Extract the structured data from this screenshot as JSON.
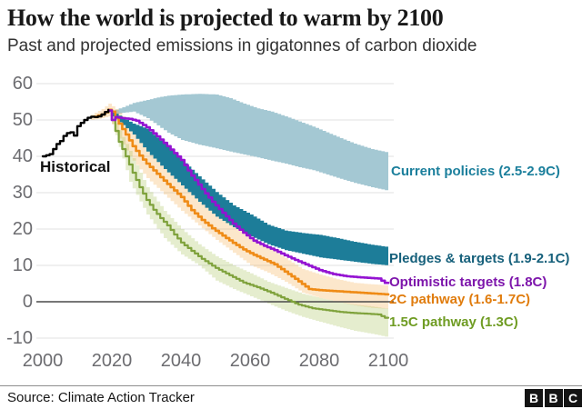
{
  "header": {
    "title": "How the world is projected to warm by 2100",
    "subtitle": "Past and projected emissions in gigatonnes of carbon dioxide"
  },
  "footer": {
    "source": "Source: Climate Action Tracker",
    "logo": [
      "B",
      "B",
      "C"
    ]
  },
  "chart_data": {
    "type": "line",
    "title": "How the world is projected to warm by 2100",
    "subtitle": "Past and projected emissions in gigatonnes of carbon dioxide",
    "xlabel": "",
    "ylabel": "gigatonnes of carbon dioxide",
    "x_range": [
      2000,
      2100
    ],
    "y_range": [
      -10,
      60
    ],
    "x_ticks": [
      2000,
      2020,
      2040,
      2060,
      2080,
      2100
    ],
    "y_ticks": [
      60,
      50,
      40,
      30,
      20,
      10,
      0,
      -10
    ],
    "grid": "horizontal-light-gray, dark zero line",
    "colors": {
      "gridline": "#e7e7e7",
      "zero_line": "#4a4a4a",
      "axis_text": "#6c6c70"
    },
    "annotations": {
      "historical": "Historical"
    },
    "series": [
      {
        "id": "current_policies",
        "name": "Current policies (2.5-2.9C)",
        "kind": "band",
        "band_color": "#a4c8d3",
        "band_opacity": 1,
        "label_color": "#1b7f9c",
        "band": [
          [
            2020,
            51.5,
            52.5
          ],
          [
            2023,
            52,
            53.5
          ],
          [
            2026,
            52.3,
            54.7
          ],
          [
            2030,
            50.5,
            55.5
          ],
          [
            2033,
            48.5,
            56.2
          ],
          [
            2036,
            46.5,
            56.7
          ],
          [
            2040,
            44.5,
            57
          ],
          [
            2045,
            43.2,
            57.2
          ],
          [
            2050,
            42.2,
            57
          ],
          [
            2054,
            41.3,
            56
          ],
          [
            2058,
            40.5,
            54.5
          ],
          [
            2062,
            39.7,
            53.2
          ],
          [
            2066,
            38.8,
            52.3
          ],
          [
            2070,
            38,
            51
          ],
          [
            2074,
            37,
            49.6
          ],
          [
            2078,
            36.2,
            48.2
          ],
          [
            2082,
            35,
            46.6
          ],
          [
            2086,
            33.8,
            45
          ],
          [
            2090,
            32.7,
            43.5
          ],
          [
            2095,
            31.5,
            42
          ],
          [
            2100,
            30.5,
            41
          ]
        ]
      },
      {
        "id": "two_c",
        "name": "2C pathway (1.6-1.7C)",
        "kind": "line+band",
        "line_color": "#ef8b16",
        "line_width": 2.6,
        "band_color": "#f2a02e",
        "band_opacity": 0.25,
        "label_color": "#e07c0d",
        "line": [
          [
            2015,
            50.9
          ],
          [
            2017,
            51.5
          ],
          [
            2019,
            52.8
          ],
          [
            2020,
            52.3
          ],
          [
            2022,
            49
          ],
          [
            2024,
            46
          ],
          [
            2026,
            42.8
          ],
          [
            2028,
            40.2
          ],
          [
            2030,
            38
          ],
          [
            2033,
            35.2
          ],
          [
            2036,
            32.4
          ],
          [
            2040,
            28.8
          ],
          [
            2043,
            25.2
          ],
          [
            2046,
            22.5
          ],
          [
            2049,
            20.2
          ],
          [
            2052,
            18.2
          ],
          [
            2055,
            16.2
          ],
          [
            2058,
            14.4
          ],
          [
            2061,
            12.9
          ],
          [
            2064,
            11.6
          ],
          [
            2067,
            10.3
          ],
          [
            2070,
            8.3
          ],
          [
            2073,
            6.3
          ],
          [
            2077,
            3.5
          ],
          [
            2080,
            3.2
          ],
          [
            2085,
            2.9
          ],
          [
            2090,
            2.6
          ],
          [
            2095,
            2.3
          ],
          [
            2100,
            2
          ]
        ],
        "band": [
          [
            2014,
            50,
            51.5
          ],
          [
            2017,
            50.5,
            53
          ],
          [
            2019,
            51,
            54.5
          ],
          [
            2021,
            46.5,
            53
          ],
          [
            2025,
            40,
            49
          ],
          [
            2030,
            34,
            43.5
          ],
          [
            2035,
            29.5,
            39.5
          ],
          [
            2040,
            25,
            35
          ],
          [
            2045,
            21,
            30.5
          ],
          [
            2050,
            17,
            27
          ],
          [
            2055,
            13.5,
            22
          ],
          [
            2060,
            10,
            17.8
          ],
          [
            2065,
            8,
            15
          ],
          [
            2070,
            5.5,
            12
          ],
          [
            2075,
            2.5,
            9
          ],
          [
            2080,
            1,
            7.5
          ],
          [
            2085,
            0,
            6.2
          ],
          [
            2090,
            -1,
            5.2
          ],
          [
            2095,
            -1.7,
            4.8
          ],
          [
            2100,
            -2,
            4.5
          ]
        ]
      },
      {
        "id": "one_five_c",
        "name": "1.5C pathway (1.3C)",
        "kind": "line+band",
        "line_color": "#7fa23c",
        "line_width": 2.2,
        "band_color": "#a9c25d",
        "band_opacity": 0.3,
        "label_color": "#6f9c23",
        "line": [
          [
            2019,
            52.5
          ],
          [
            2020,
            50
          ],
          [
            2022,
            44
          ],
          [
            2024,
            40
          ],
          [
            2026,
            35.5
          ],
          [
            2028,
            31.5
          ],
          [
            2030,
            28
          ],
          [
            2032,
            25.3
          ],
          [
            2034,
            23
          ],
          [
            2036,
            21
          ],
          [
            2038,
            18.5
          ],
          [
            2040,
            16.3
          ],
          [
            2043,
            14
          ],
          [
            2046,
            11.8
          ],
          [
            2050,
            9.3
          ],
          [
            2054,
            7.3
          ],
          [
            2058,
            5.3
          ],
          [
            2062,
            4
          ],
          [
            2066,
            2.5
          ],
          [
            2070,
            0.8
          ],
          [
            2074,
            -0.8
          ],
          [
            2078,
            -1.8
          ],
          [
            2082,
            -2.3
          ],
          [
            2086,
            -2.8
          ],
          [
            2090,
            -3.1
          ],
          [
            2094,
            -3.3
          ],
          [
            2097,
            -3.5
          ],
          [
            2099,
            -4.4
          ],
          [
            2100,
            -4.4
          ]
        ],
        "band": [
          [
            2020,
            49,
            51
          ],
          [
            2025,
            33,
            41.5
          ],
          [
            2030,
            24,
            31.5
          ],
          [
            2035,
            17.5,
            25
          ],
          [
            2040,
            13,
            20
          ],
          [
            2045,
            10,
            15.8
          ],
          [
            2050,
            5.8,
            12.5
          ],
          [
            2055,
            3.5,
            10
          ],
          [
            2060,
            1.5,
            7.8
          ],
          [
            2065,
            -0.5,
            5.5
          ],
          [
            2070,
            -2.5,
            3.8
          ],
          [
            2075,
            -4.2,
            2.2
          ],
          [
            2080,
            -5.5,
            1
          ],
          [
            2085,
            -6.8,
            0
          ],
          [
            2090,
            -8,
            -0.8
          ],
          [
            2095,
            -8.8,
            -1.3
          ],
          [
            2100,
            -9.8,
            -2
          ]
        ]
      },
      {
        "id": "pledges",
        "name": "Pledges & targets (1.9-2.1C)",
        "kind": "band",
        "band_color": "#1d7d99",
        "band_opacity": 1,
        "label_color": "#16607b",
        "band": [
          [
            2020,
            51,
            52.3
          ],
          [
            2023,
            48.6,
            50.6
          ],
          [
            2026,
            46,
            49
          ],
          [
            2030,
            41.3,
            47.6
          ],
          [
            2035,
            36.5,
            43.5
          ],
          [
            2040,
            32,
            39
          ],
          [
            2045,
            27.5,
            34.5
          ],
          [
            2050,
            23.4,
            30.2
          ],
          [
            2055,
            20.5,
            26.5
          ],
          [
            2060,
            18,
            24
          ],
          [
            2065,
            15.8,
            21.2
          ],
          [
            2070,
            14.2,
            19.6
          ],
          [
            2075,
            13.2,
            18.9
          ],
          [
            2080,
            12.2,
            18.4
          ],
          [
            2085,
            11.6,
            17.5
          ],
          [
            2090,
            11,
            16.5
          ],
          [
            2095,
            10.4,
            15.7
          ],
          [
            2100,
            10,
            15
          ]
        ]
      },
      {
        "id": "optimistic",
        "name": "Optimistic targets (1.8C)",
        "kind": "line",
        "line_color": "#9413d2",
        "line_width": 2.6,
        "label_color": "#7d15ab",
        "line": [
          [
            2019,
            52.6
          ],
          [
            2020,
            50
          ],
          [
            2021,
            50.8
          ],
          [
            2023,
            50.5
          ],
          [
            2025,
            50.3
          ],
          [
            2027,
            49.8
          ],
          [
            2030,
            48
          ],
          [
            2033,
            45.5
          ],
          [
            2036,
            42.8
          ],
          [
            2040,
            39
          ],
          [
            2043,
            34.7
          ],
          [
            2046,
            31
          ],
          [
            2049,
            27.5
          ],
          [
            2052,
            24.5
          ],
          [
            2055,
            21.5
          ],
          [
            2058,
            19
          ],
          [
            2061,
            16.8
          ],
          [
            2064,
            15.4
          ],
          [
            2067,
            14.2
          ],
          [
            2070,
            12.8
          ],
          [
            2073,
            11.5
          ],
          [
            2076,
            10.3
          ],
          [
            2080,
            8.7
          ],
          [
            2084,
            7.6
          ],
          [
            2088,
            7
          ],
          [
            2092,
            6.7
          ],
          [
            2097,
            6.4
          ],
          [
            2099,
            5.2
          ],
          [
            2100,
            5.2
          ]
        ]
      },
      {
        "id": "historical",
        "name": "Historical",
        "kind": "line",
        "line_color": "#000000",
        "line_width": 2.4,
        "label_color": "#111111",
        "line": [
          [
            2000,
            40
          ],
          [
            2001,
            40.3
          ],
          [
            2002,
            40.6
          ],
          [
            2003,
            42
          ],
          [
            2004,
            43.4
          ],
          [
            2005,
            44.2
          ],
          [
            2006,
            45.6
          ],
          [
            2007,
            46.4
          ],
          [
            2008,
            46.6
          ],
          [
            2009,
            45.7
          ],
          [
            2010,
            48.3
          ],
          [
            2011,
            49.2
          ],
          [
            2012,
            50
          ],
          [
            2013,
            50.6
          ],
          [
            2014,
            50.9
          ],
          [
            2015,
            50.8
          ],
          [
            2016,
            51
          ],
          [
            2017,
            51.5
          ],
          [
            2018,
            52.2
          ],
          [
            2019,
            52.8
          ]
        ]
      }
    ]
  }
}
